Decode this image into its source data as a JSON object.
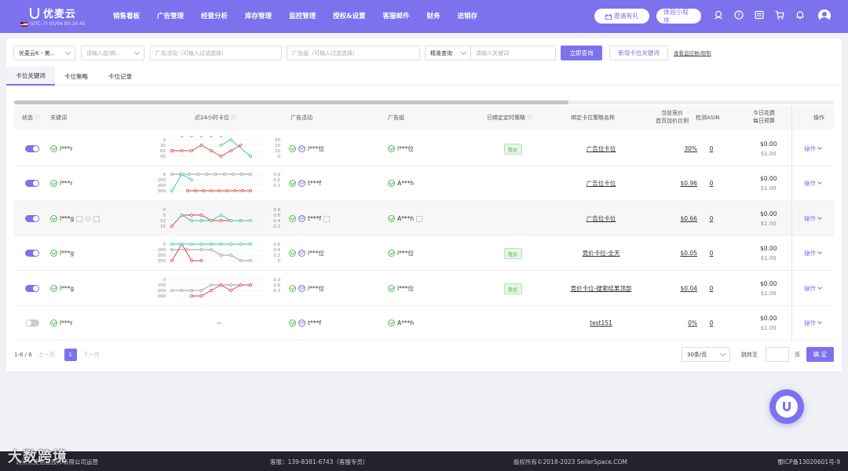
{
  "app": {
    "name": "优麦云",
    "timezone": "(UTC-7) 05/04 00:16:45"
  },
  "nav": [
    "销售看板",
    "广告管理",
    "经营分析",
    "库存管理",
    "监控管理",
    "授权&设置",
    "客服邮件",
    "财务",
    "进销存"
  ],
  "top_buttons": {
    "invite": "邀请有礼",
    "mini": "体验小程序"
  },
  "filters": {
    "shop": "优麦云K - 美...",
    "shop_placeholder": "请输入店/商...",
    "campaign_placeholder": "广告活动（可输入过滤选择）",
    "group_placeholder": "广告组（可输入过滤选择）",
    "match": "精准查询",
    "keyword_placeholder": "请输入关键词",
    "query": "立即查询",
    "add": "新增卡位关键词",
    "limit": "查看监控数/限制"
  },
  "tabs": [
    "卡位关键词",
    "卡位策略",
    "卡位记录"
  ],
  "columns": {
    "status": "状态",
    "keyword": "关键词",
    "trend": "近24小时卡位",
    "campaign": "广告活动",
    "group": "广告组",
    "strategy": "已绑定定时策略",
    "strategy_name": "绑定卡位策略名称",
    "bid1": "当前竞价",
    "bid2": "首页加价比例",
    "asin": "检测ASIN",
    "cost1": "今日花费",
    "cost2": "每日预算",
    "op": "操作"
  },
  "rows": [
    {
      "keyword": "l***r",
      "campaign": "l***位",
      "group": "l***位",
      "badge": "竞价",
      "strategy": "广告位卡位",
      "bid": "30%",
      "asin": "0",
      "cost": "$0.00",
      "budget": "$1.00",
      "op": "操作",
      "on": true,
      "ylabels": [
        "0",
        "30",
        "60",
        "90"
      ],
      "ylabels2": [
        "30",
        "20",
        "10",
        "0"
      ],
      "cpt": "l",
      "gi": "ok"
    },
    {
      "keyword": "l***r",
      "campaign": "t***f",
      "group": "A***h",
      "badge": "",
      "strategy": "广告位卡位",
      "bid": "$0.96",
      "asin": "0",
      "cost": "$0.00",
      "budget": "$1.00",
      "op": "操作",
      "on": true,
      "ylabels": [
        "0",
        "100",
        "200",
        "300"
      ],
      "ylabels2": [
        "0.9",
        "0.6",
        "0.3"
      ],
      "cpt": "P",
      "gi": "ok"
    },
    {
      "keyword": "l***g",
      "campaign": "t***f",
      "group": "A***h",
      "badge": "",
      "strategy": "广告位卡位",
      "bid": "$0.66",
      "asin": "0",
      "cost": "$0.00",
      "budget": "$1.00",
      "op": "操作",
      "on": true,
      "ylabels": [
        "0",
        "5",
        "10",
        "15"
      ],
      "ylabels2": [
        "0.8",
        "0.6",
        "0.4",
        "0.2"
      ],
      "cpt": "P",
      "gi": "ok"
    },
    {
      "keyword": "l***g",
      "campaign": "l***位",
      "group": "l***位",
      "badge": "竞价",
      "strategy": "竞价卡位-全天",
      "bid": "$0.05",
      "asin": "0",
      "cost": "$0.00",
      "budget": "$1.00",
      "op": "操作",
      "on": true,
      "ylabels": [
        "0",
        "100",
        "200",
        "300"
      ],
      "ylabels2": [
        "0.6",
        "0.4",
        "0.2",
        "0"
      ],
      "cpt": "P",
      "gi": "ok"
    },
    {
      "keyword": "l***g",
      "campaign": "l***位",
      "group": "l***位",
      "badge": "竞价",
      "strategy": "竞价卡位-搜索结果顶部",
      "bid": "$0.04",
      "asin": "0",
      "cost": "$0.00",
      "budget": "$1.00",
      "op": "操作",
      "on": true,
      "ylabels": [
        "0",
        "100",
        "200",
        "300"
      ],
      "ylabels2": [
        "0.9",
        "0.6",
        "0.3"
      ],
      "cpt": "P",
      "gi": "ok"
    },
    {
      "keyword": "l***r",
      "campaign": "t***f",
      "group": "A***h",
      "badge": "",
      "strategy": "test151",
      "bid": "0%",
      "asin": "0",
      "cost": "$0.00",
      "budget": "$1.00",
      "op": "操作",
      "on": false,
      "empty": "--",
      "cpt": "ok",
      "gi": "ok"
    }
  ],
  "pager": {
    "range": "1-6 / 6",
    "prev": "上一页",
    "page": "1",
    "next": "下一页",
    "size": "30条/页",
    "jump": "跳转至",
    "page_unit": "页",
    "confirm": "确 定"
  },
  "footer": {
    "left": "北京优麦信息技术有限公司运营",
    "service": "客服：139-8381-6743（客服专员）",
    "copyright": "版权所有©2018-2023 SellerSpace.COM",
    "icp": "蜀ICP备13020601号-9"
  },
  "watermark": "大数跨境",
  "colors": {
    "accent": "#7c72ee",
    "green": "#4caf50",
    "red": "#e53935",
    "teal": "#26c6a0"
  }
}
